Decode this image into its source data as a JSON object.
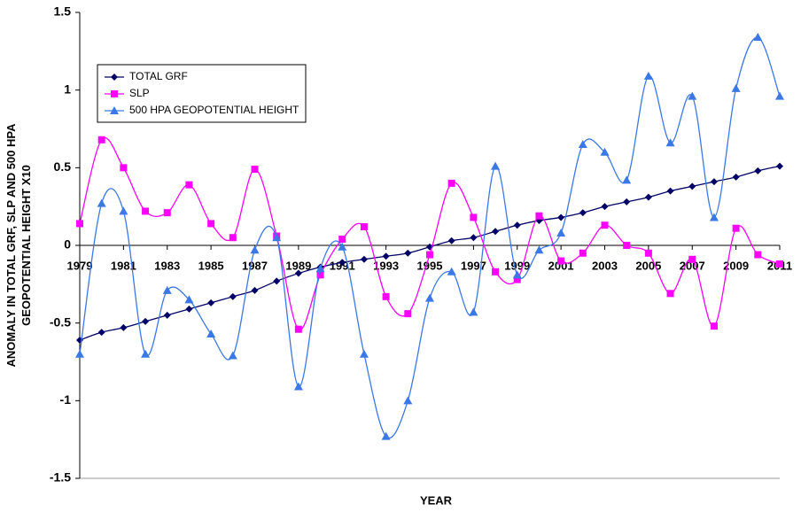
{
  "chart_data": {
    "type": "line",
    "x_label": "YEAR",
    "y_label": "ANOMALY IN TOTAL GRF, SLP AND 500 HPA GEOPOTENTIAL HEIGHT X10",
    "x": [
      1979,
      1980,
      1981,
      1982,
      1983,
      1984,
      1985,
      1986,
      1987,
      1988,
      1989,
      1990,
      1991,
      1992,
      1993,
      1994,
      1995,
      1996,
      1997,
      1998,
      1999,
      2000,
      2001,
      2002,
      2003,
      2004,
      2005,
      2006,
      2007,
      2008,
      2009,
      2010,
      2011
    ],
    "xlim": [
      1979,
      2011
    ],
    "xticks": [
      1979,
      1981,
      1983,
      1985,
      1987,
      1989,
      1991,
      1993,
      1995,
      1997,
      1999,
      2001,
      2003,
      2005,
      2007,
      2009,
      2011
    ],
    "ylim": [
      -1.5,
      1.5
    ],
    "yticks": [
      -1.5,
      -1,
      -0.5,
      0,
      0.5,
      1,
      1.5
    ],
    "grid": false,
    "smooth": true,
    "legend": "upper left",
    "series": [
      {
        "name": "TOTAL GRF",
        "color": "#000066",
        "marker": "diamond",
        "values": [
          -0.61,
          -0.56,
          -0.53,
          -0.49,
          -0.45,
          -0.41,
          -0.37,
          -0.33,
          -0.29,
          -0.23,
          -0.18,
          -0.14,
          -0.11,
          -0.09,
          -0.07,
          -0.05,
          -0.01,
          0.03,
          0.05,
          0.09,
          0.13,
          0.16,
          0.18,
          0.21,
          0.25,
          0.28,
          0.31,
          0.35,
          0.38,
          0.41,
          0.44,
          0.48,
          0.51
        ]
      },
      {
        "name": "SLP",
        "color": "#ff00ff",
        "marker": "square",
        "values": [
          0.14,
          0.68,
          0.5,
          0.22,
          0.21,
          0.39,
          0.14,
          0.05,
          0.49,
          0.06,
          -0.54,
          -0.19,
          0.04,
          0.12,
          -0.33,
          -0.44,
          -0.06,
          0.4,
          0.18,
          -0.17,
          -0.22,
          0.19,
          -0.1,
          -0.05,
          0.13,
          0.0,
          -0.05,
          -0.31,
          -0.09,
          -0.52,
          0.11,
          -0.06,
          -0.12
        ]
      },
      {
        "name": "500 HPA GEOPOTENTIAL HEIGHT",
        "color": "#3b78e7",
        "marker": "triangle",
        "values": [
          -0.7,
          0.27,
          0.22,
          -0.7,
          -0.29,
          -0.35,
          -0.57,
          -0.71,
          -0.03,
          0.05,
          -0.91,
          -0.15,
          -0.01,
          -0.7,
          -1.23,
          -1.0,
          -0.34,
          -0.17,
          -0.43,
          0.51,
          -0.19,
          -0.03,
          0.08,
          0.65,
          0.6,
          0.42,
          1.09,
          0.66,
          0.96,
          0.18,
          1.01,
          1.34,
          0.96
        ]
      }
    ]
  }
}
